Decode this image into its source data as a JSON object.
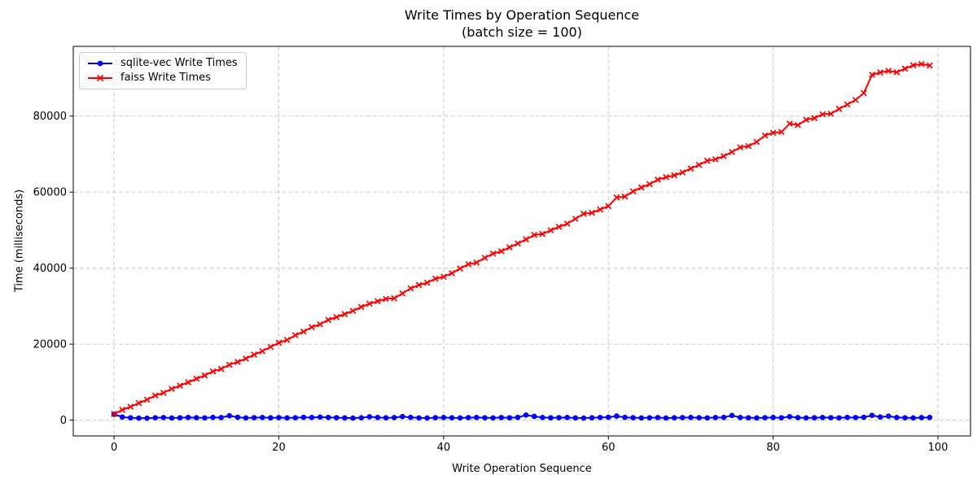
{
  "figure": {
    "title_lines": [
      "Write Times by Operation Sequence",
      "(batch size = 100)"
    ],
    "xlabel": "Write Operation Sequence",
    "ylabel": "Time (milliseconds)"
  },
  "chart_data": {
    "type": "line",
    "title": "Write Times by Operation Sequence (batch size = 100)",
    "xlabel": "Write Operation Sequence",
    "ylabel": "Time (milliseconds)",
    "xlim": [
      -4.95,
      103.95
    ],
    "ylim": [
      -4160,
      98350
    ],
    "xticks": [
      0,
      20,
      40,
      60,
      80,
      100
    ],
    "yticks": [
      0,
      20000,
      40000,
      60000,
      80000
    ],
    "grid": true,
    "grid_style": "dashed",
    "grid_color": "#cccccc",
    "legend_position": "upper-left",
    "x": [
      0,
      1,
      2,
      3,
      4,
      5,
      6,
      7,
      8,
      9,
      10,
      11,
      12,
      13,
      14,
      15,
      16,
      17,
      18,
      19,
      20,
      21,
      22,
      23,
      24,
      25,
      26,
      27,
      28,
      29,
      30,
      31,
      32,
      33,
      34,
      35,
      36,
      37,
      38,
      39,
      40,
      41,
      42,
      43,
      44,
      45,
      46,
      47,
      48,
      49,
      50,
      51,
      52,
      53,
      54,
      55,
      56,
      57,
      58,
      59,
      60,
      61,
      62,
      63,
      64,
      65,
      66,
      67,
      68,
      69,
      70,
      71,
      72,
      73,
      74,
      75,
      76,
      77,
      78,
      79,
      80,
      81,
      82,
      83,
      84,
      85,
      86,
      87,
      88,
      89,
      90,
      91,
      92,
      93,
      94,
      95,
      96,
      97,
      98,
      99
    ],
    "series": [
      {
        "name": "sqlite-vec Write Times",
        "color": "#0000ff",
        "marker": "circle",
        "values": [
          1540,
          820,
          610,
          540,
          500,
          620,
          680,
          560,
          630,
          710,
          640,
          590,
          720,
          680,
          1160,
          760,
          580,
          650,
          700,
          610,
          660,
          590,
          630,
          740,
          690,
          800,
          720,
          650,
          580,
          540,
          620,
          880,
          700,
          610,
          660,
          940,
          720,
          600,
          560,
          640,
          690,
          610,
          580,
          660,
          700,
          620,
          590,
          680,
          630,
          720,
          1330,
          980,
          700,
          610,
          650,
          690,
          580,
          540,
          620,
          700,
          760,
          1060,
          720,
          640,
          590,
          630,
          680,
          560,
          610,
          660,
          700,
          640,
          590,
          680,
          720,
          1230,
          700,
          620,
          580,
          640,
          690,
          610,
          920,
          660,
          580,
          630,
          700,
          650,
          600,
          720,
          680,
          760,
          1250,
          820,
          1040,
          700,
          620,
          580,
          660,
          710
        ]
      },
      {
        "name": "faiss Write Times",
        "color": "#ff0000",
        "marker": "x",
        "values": [
          1620,
          2710,
          3520,
          4480,
          5390,
          6470,
          7180,
          8230,
          9070,
          9950,
          10890,
          11770,
          12830,
          13480,
          14570,
          15310,
          16200,
          17230,
          18150,
          19270,
          20360,
          21100,
          22350,
          23290,
          24460,
          25210,
          26380,
          27110,
          27890,
          28750,
          29770,
          30640,
          31280,
          31900,
          32070,
          33340,
          34650,
          35550,
          36160,
          37200,
          37730,
          38660,
          39890,
          41010,
          41450,
          42710,
          43800,
          44450,
          45480,
          46480,
          47560,
          48720,
          48990,
          49960,
          50850,
          51690,
          52980,
          54300,
          54560,
          55430,
          56310,
          58590,
          58830,
          60210,
          61230,
          62080,
          63270,
          63940,
          64420,
          65180,
          66210,
          67160,
          68240,
          68630,
          69460,
          70550,
          71790,
          72110,
          73210,
          74890,
          75610,
          75820,
          78010,
          77640,
          79030,
          79480,
          80480,
          80610,
          81890,
          83050,
          84260,
          86060,
          90890,
          91480,
          91900,
          91550,
          92480,
          93360,
          93690,
          93310
        ]
      }
    ]
  }
}
